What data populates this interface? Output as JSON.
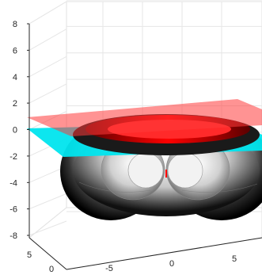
{
  "chart_data": {
    "type": "surface3d",
    "title": "",
    "xlabel": "",
    "ylabel": "",
    "zlabel": "",
    "x_ticks": [
      "-5",
      "0",
      "5"
    ],
    "y_ticks": [
      "0",
      "5"
    ],
    "z_ticks": [
      "8",
      "6",
      "4",
      "2",
      "0",
      "-2",
      "-4",
      "-6",
      "-8"
    ],
    "z_tick_values": [
      8,
      6,
      4,
      2,
      0,
      -2,
      -4,
      -6,
      -8
    ],
    "zlim": [
      -8,
      8
    ],
    "grid": true,
    "objects": [
      {
        "kind": "toroidal-surface",
        "colormap": "gray",
        "z_range": [
          -6.5,
          0
        ]
      },
      {
        "kind": "plane",
        "color": "#ff6a6a",
        "z": 0.8
      },
      {
        "kind": "plane",
        "color": "#00e5ee",
        "z": -0.3
      },
      {
        "kind": "ring",
        "color": "#ff0000",
        "z": 0.6
      },
      {
        "kind": "center-marker",
        "color": "#ff0000",
        "z": -4.0
      }
    ]
  }
}
